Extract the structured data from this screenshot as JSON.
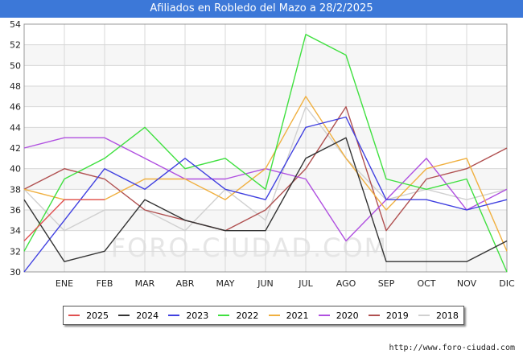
{
  "title": "Afiliados en Robledo del Mazo a 28/2/2025",
  "footer_url": "http://www.foro-ciudad.com",
  "watermark": "FORO-CIUDAD.COM",
  "chart_data": {
    "type": "line",
    "title": "Afiliados en Robledo del Mazo a 28/2/2025",
    "categories": [
      "",
      "ENE",
      "FEB",
      "MAR",
      "ABR",
      "MAY",
      "JUN",
      "JUL",
      "AGO",
      "SEP",
      "OCT",
      "NOV",
      "DIC"
    ],
    "ylim": [
      30,
      54
    ],
    "yticks": [
      30,
      32,
      34,
      36,
      38,
      40,
      42,
      44,
      46,
      48,
      50,
      52,
      54
    ],
    "grid": true,
    "legend_position": "bottom",
    "series": [
      {
        "name": "2025",
        "color": "#e05050",
        "values": [
          33,
          37,
          37,
          null,
          null,
          null,
          null,
          null,
          null,
          null,
          null,
          null,
          null
        ]
      },
      {
        "name": "2024",
        "color": "#333333",
        "values": [
          37,
          31,
          32,
          37,
          35,
          34,
          34,
          41,
          43,
          31,
          31,
          31,
          33
        ]
      },
      {
        "name": "2023",
        "color": "#4040e0",
        "values": [
          30,
          35,
          40,
          38,
          41,
          38,
          37,
          44,
          45,
          37,
          37,
          36,
          37
        ]
      },
      {
        "name": "2022",
        "color": "#40e040",
        "values": [
          32,
          39,
          41,
          44,
          40,
          41,
          38,
          53,
          51,
          39,
          38,
          39,
          30
        ]
      },
      {
        "name": "2021",
        "color": "#f0b040",
        "values": [
          38,
          37,
          37,
          39,
          39,
          37,
          40,
          47,
          41,
          36,
          40,
          41,
          32
        ]
      },
      {
        "name": "2020",
        "color": "#b050e0",
        "values": [
          42,
          43,
          43,
          41,
          39,
          39,
          40,
          39,
          33,
          37,
          41,
          36,
          38
        ]
      },
      {
        "name": "2019",
        "color": "#b05050",
        "values": [
          38,
          40,
          39,
          36,
          35,
          34,
          36,
          40,
          46,
          34,
          39,
          40,
          42
        ]
      },
      {
        "name": "2018",
        "color": "#d0d0d0",
        "values": [
          38,
          34,
          36,
          36,
          34,
          38,
          35,
          46,
          41,
          37,
          38,
          37,
          38
        ]
      }
    ]
  }
}
